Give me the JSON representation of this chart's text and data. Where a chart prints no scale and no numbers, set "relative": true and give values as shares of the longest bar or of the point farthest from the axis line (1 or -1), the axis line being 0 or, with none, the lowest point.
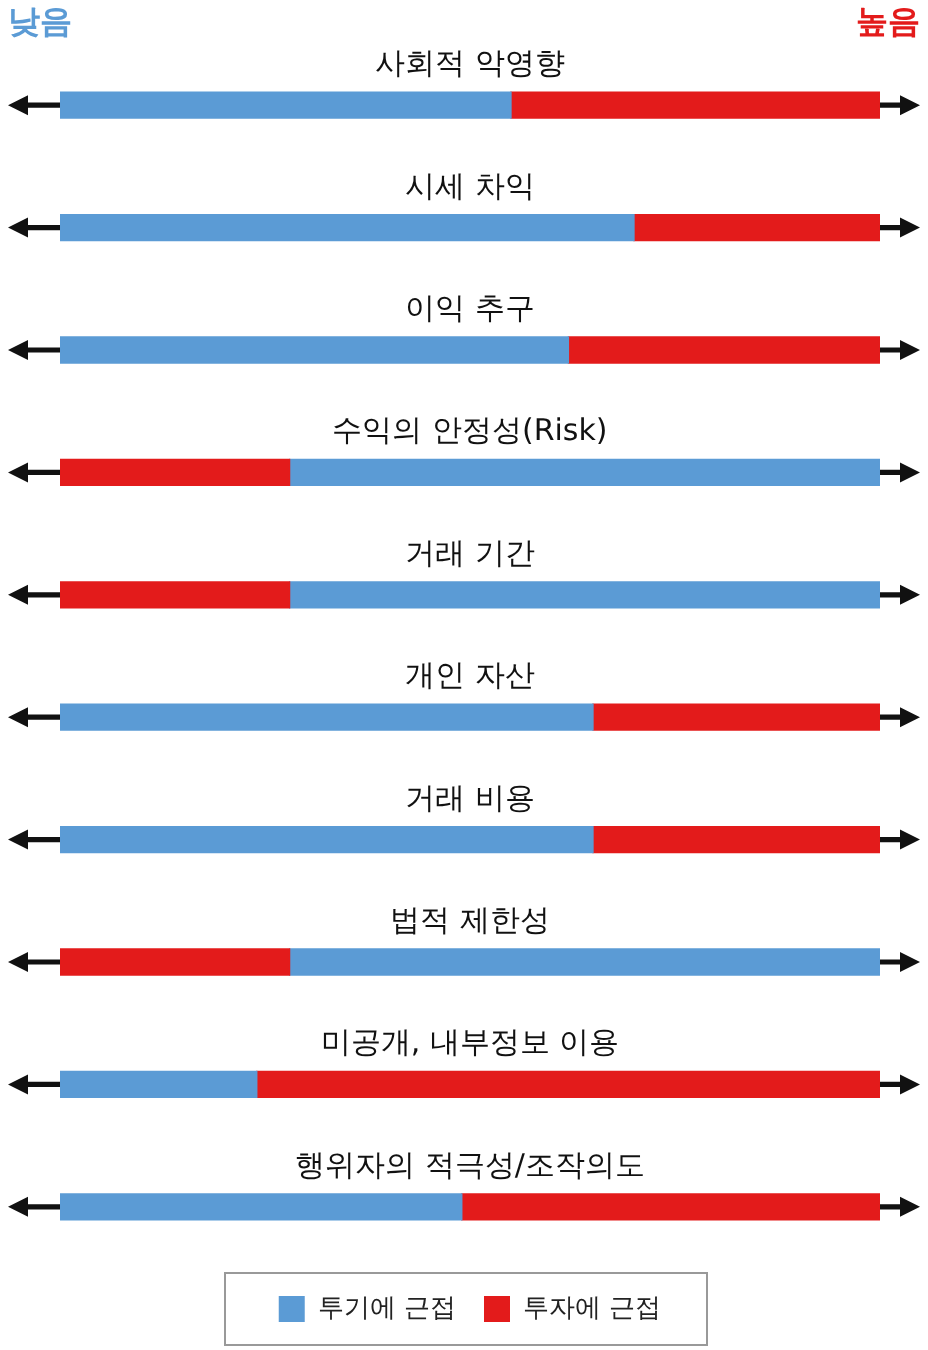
{
  "chart_data": {
    "type": "bar",
    "orientation": "horizontal",
    "stacked": true,
    "relative": true,
    "legend": "bottom",
    "categories": [
      "사회적 악영향",
      "시세 차익",
      "이익 추구",
      "수익의 안정성(Risk)",
      "거래 기간",
      "개인 자산",
      "거래 비용",
      "법적 제한성",
      "미공개, 내부정보 이용",
      "행위자의 적극성/조작의도"
    ],
    "series": [
      {
        "name": "투기에 근접",
        "color": "#5b9bd5",
        "values": [
          0.55,
          0.7,
          0.62,
          null,
          null,
          0.65,
          0.65,
          null,
          0.24,
          0.49
        ]
      },
      {
        "name": "투자에 근접",
        "color": "#e31b1b",
        "values": [
          0.45,
          0.3,
          0.38,
          0.28,
          0.28,
          0.35,
          0.35,
          0.28,
          0.76,
          0.51
        ]
      },
      {
        "color": "#5b9bd5",
        "values": [
          null,
          null,
          null,
          0.72,
          0.72,
          null,
          null,
          0.72,
          null,
          null
        ]
      }
    ],
    "annotations": [
      "낮음",
      "높음"
    ]
  }
}
